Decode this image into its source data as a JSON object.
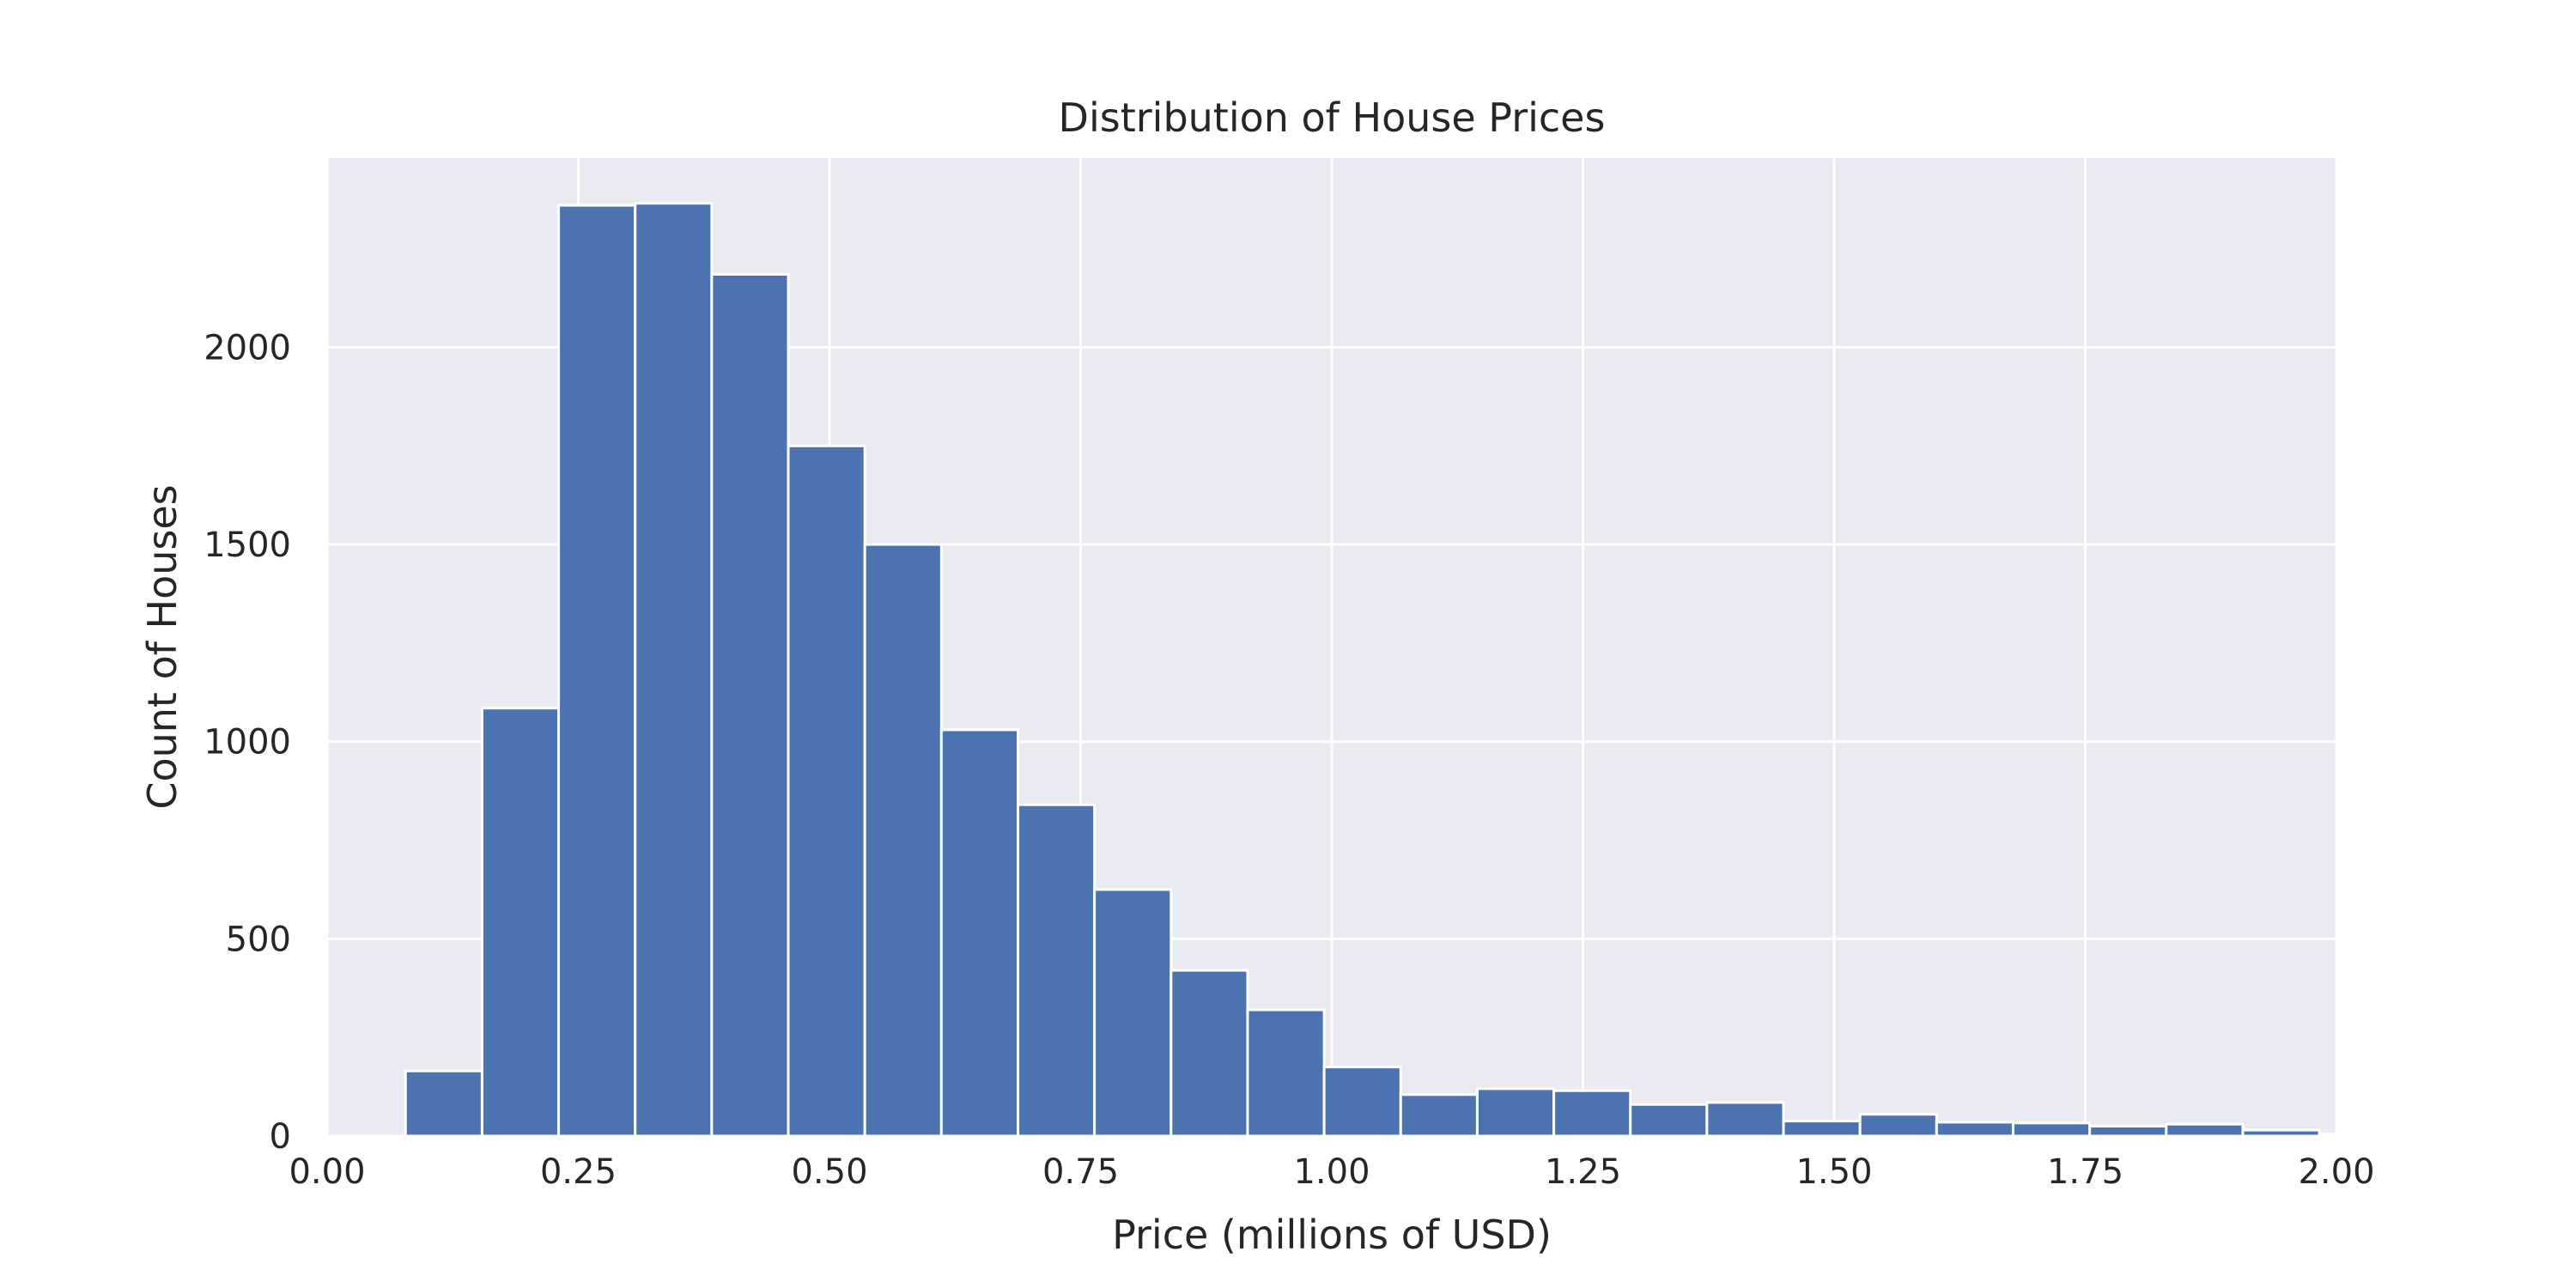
{
  "chart_data": {
    "type": "bar",
    "title": "Distribution of House Prices",
    "xlabel": "Price (millions of USD)",
    "ylabel": "Count of Houses",
    "xlim": [
      0,
      2.0
    ],
    "ylim": [
      0,
      2480
    ],
    "xticks": [
      "0.00",
      "0.25",
      "0.50",
      "0.75",
      "1.00",
      "1.25",
      "1.50",
      "1.75",
      "2.00"
    ],
    "yticks": [
      "0",
      "500",
      "1000",
      "1500",
      "2000"
    ],
    "grid": true,
    "bin_edges": [
      0.078,
      0.1542,
      0.2304,
      0.3066,
      0.3828,
      0.459,
      0.5352,
      0.6114,
      0.6876,
      0.7638,
      0.84,
      0.9162,
      0.9924,
      1.0686,
      1.1448,
      1.221,
      1.2972,
      1.3734,
      1.4496,
      1.5258,
      1.602,
      1.6782,
      1.7544,
      1.8306,
      1.9068,
      1.983,
      2.0592
    ],
    "values": [
      165,
      1085,
      2360,
      2365,
      2185,
      1750,
      1500,
      1030,
      840,
      625,
      420,
      320,
      175,
      105,
      120,
      115,
      80,
      85,
      38,
      55,
      35,
      33,
      25,
      30,
      15,
      5
    ],
    "colors": {
      "bar": "#4c72b0",
      "bar_edge": "#ffffff",
      "plot_background": "#eaeaf2",
      "grid": "#ffffff"
    }
  }
}
